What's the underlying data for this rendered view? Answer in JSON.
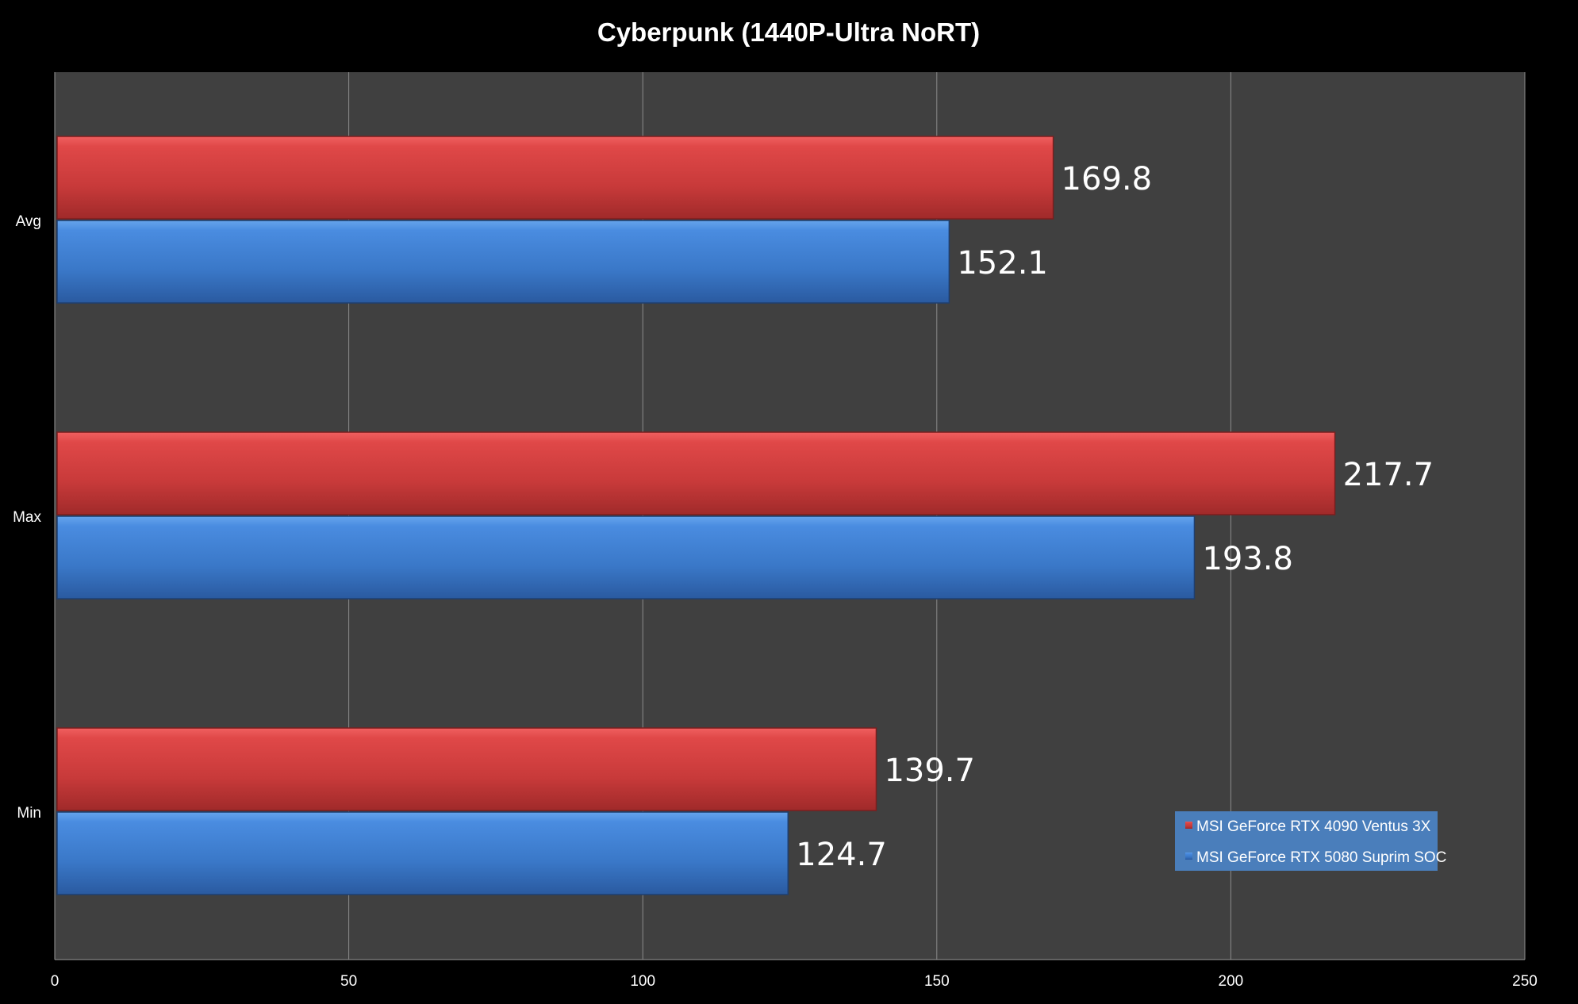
{
  "chart_data": {
    "type": "bar",
    "orientation": "horizontal",
    "title": "Cyberpunk (1440P-Ultra NoRT)",
    "xlabel": "",
    "ylabel": "",
    "categories": [
      "Avg",
      "Max",
      "Min"
    ],
    "series": [
      {
        "name": "MSI GeForce RTX 4090 Ventus 3X",
        "color": "#d63c3c",
        "values": [
          169.8,
          217.7,
          139.7
        ]
      },
      {
        "name": "MSI GeForce RTX 5080 Suprim SOC",
        "color": "#3e7fcf",
        "values": [
          152.1,
          193.8,
          124.7
        ]
      }
    ],
    "xlim": [
      0,
      250
    ],
    "xticks": [
      0,
      50,
      100,
      150,
      200,
      250
    ],
    "grid": "vertical",
    "legend_position": "bottom-right",
    "colors": {
      "background": "#000000",
      "plot_area": "#404040",
      "gridline": "#8c8c8c",
      "legend_box": "#4a7ebb"
    }
  }
}
